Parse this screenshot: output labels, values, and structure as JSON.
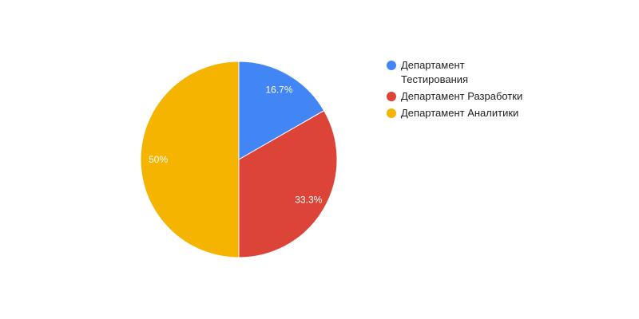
{
  "chart_data": {
    "type": "pie",
    "title": "",
    "categories": [
      "Департамент Тестирования",
      "Департамент Разработки",
      "Департамент Аналитики"
    ],
    "values": [
      16.7,
      33.3,
      50
    ],
    "labels": [
      "16.7%",
      "33.3%",
      "50%"
    ],
    "colors": [
      "#4285f4",
      "#db4437",
      "#f4b400"
    ],
    "legend": {
      "position": "right",
      "entries": [
        {
          "lines": [
            "Департамент",
            "Тестирования"
          ],
          "color": "#4285f4"
        },
        {
          "lines": [
            "Департамент Разработки"
          ],
          "color": "#db4437"
        },
        {
          "lines": [
            "Департамент Аналитики"
          ],
          "color": "#f4b400"
        }
      ]
    }
  }
}
